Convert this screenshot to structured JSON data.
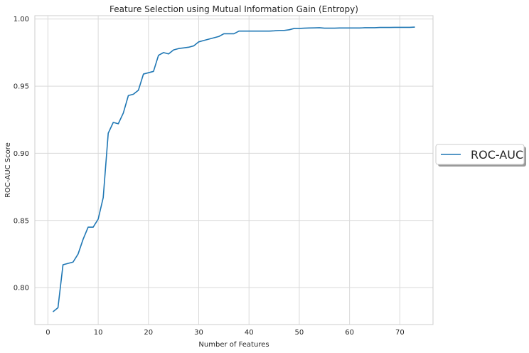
{
  "chart_data": {
    "type": "line",
    "title": "Feature Selection using Mutual Information Gain (Entropy)",
    "xlabel": "Number of Features",
    "ylabel": "ROC-AUC Score",
    "xlim": [
      -2.6,
      76.6
    ],
    "ylim": [
      0.7725,
      1.0025
    ],
    "xticks": [
      0,
      10,
      20,
      30,
      40,
      50,
      60,
      70
    ],
    "yticks": [
      0.8,
      0.85,
      0.9,
      0.95,
      1.0
    ],
    "ytick_labels": [
      "0.80",
      "0.85",
      "0.90",
      "0.95",
      "1.00"
    ],
    "grid": true,
    "legend_position": "center-right-outside",
    "series": [
      {
        "name": "ROC-AUC",
        "color": "#1f77b4",
        "x": [
          1,
          2,
          3,
          4,
          5,
          6,
          7,
          8,
          9,
          10,
          11,
          12,
          13,
          14,
          15,
          16,
          17,
          18,
          19,
          20,
          21,
          22,
          23,
          24,
          25,
          26,
          27,
          28,
          29,
          30,
          31,
          32,
          33,
          34,
          35,
          36,
          37,
          38,
          39,
          40,
          41,
          42,
          43,
          44,
          45,
          46,
          47,
          48,
          49,
          50,
          51,
          52,
          53,
          54,
          55,
          56,
          57,
          58,
          59,
          60,
          61,
          62,
          63,
          64,
          65,
          66,
          67,
          68,
          69,
          70,
          71,
          72,
          73
        ],
        "values": [
          0.782,
          0.785,
          0.817,
          0.818,
          0.819,
          0.825,
          0.836,
          0.845,
          0.845,
          0.851,
          0.867,
          0.915,
          0.923,
          0.922,
          0.93,
          0.943,
          0.944,
          0.947,
          0.959,
          0.96,
          0.961,
          0.973,
          0.975,
          0.974,
          0.977,
          0.978,
          0.9785,
          0.979,
          0.98,
          0.983,
          0.984,
          0.985,
          0.986,
          0.987,
          0.989,
          0.989,
          0.989,
          0.991,
          0.991,
          0.991,
          0.991,
          0.991,
          0.991,
          0.991,
          0.9912,
          0.9915,
          0.9915,
          0.992,
          0.993,
          0.993,
          0.9932,
          0.9933,
          0.9934,
          0.9935,
          0.9932,
          0.9932,
          0.9932,
          0.9933,
          0.9933,
          0.9933,
          0.9933,
          0.9933,
          0.9935,
          0.9935,
          0.9935,
          0.9937,
          0.9937,
          0.9937,
          0.9938,
          0.9938,
          0.9938,
          0.9938,
          0.994
        ]
      }
    ]
  }
}
